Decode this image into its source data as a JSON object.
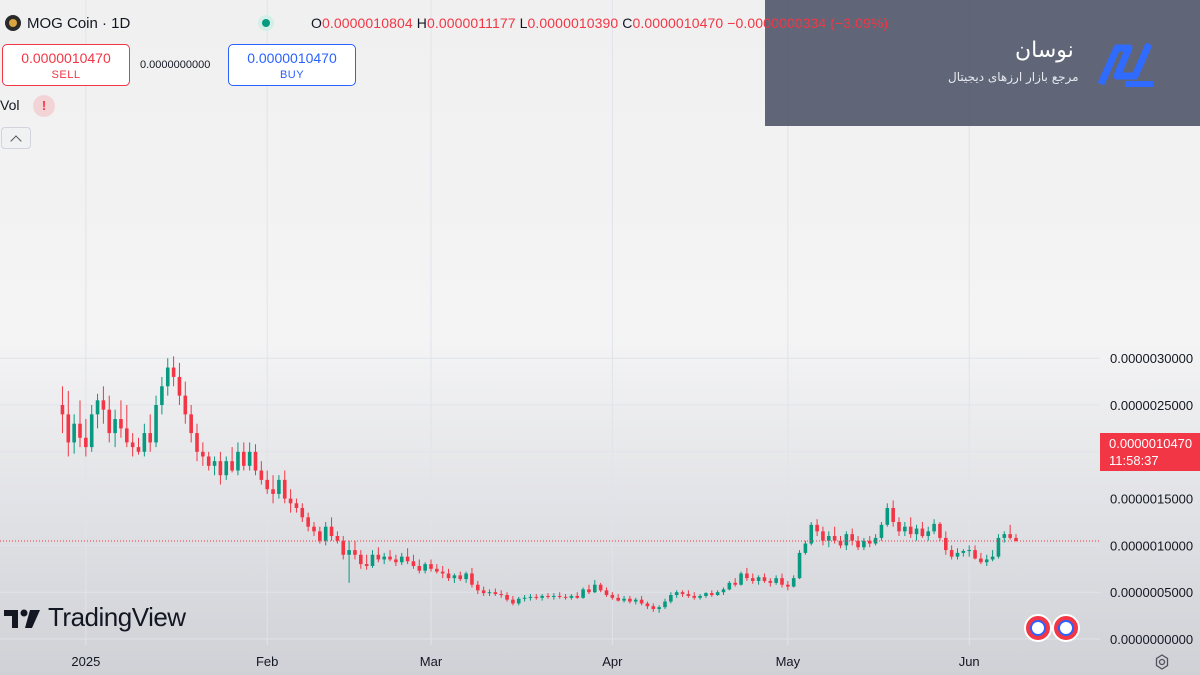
{
  "header": {
    "symbol": "MOG Coin · 1D",
    "ohlc": {
      "o_label": "O",
      "o_value": "0.0000010804",
      "h_label": "H",
      "h_value": "0.0000011177",
      "l_label": "L",
      "l_value": "0.0000010390",
      "c_label": "C",
      "c_value": "0.0000010470",
      "change": "−0.0000000334 (−3.09%)"
    }
  },
  "trade": {
    "sell_price": "0.0000010470",
    "sell_label": "SELL",
    "spread": "0.0000000000",
    "buy_price": "0.0000010470",
    "buy_label": "BUY"
  },
  "volume": {
    "label": "Vol",
    "warning": "!"
  },
  "brand": {
    "name": "نوسان",
    "tagline": "مرجع بازار ارزهای دیجیتال"
  },
  "watermark": {
    "text": "TradingView"
  },
  "current_price": {
    "value": "0.0000010470",
    "countdown": "11:58:37"
  },
  "icons": {
    "coin": "mog-coin-icon",
    "live": "live-dot-icon",
    "warning": "warning-icon",
    "collapse": "chevron-up-icon",
    "brand": "navasan-logo-icon",
    "tv": "tradingview-logo-icon",
    "flag": "us-flag-icon",
    "settings": "settings-gear-icon"
  },
  "colors": {
    "up": "#089981",
    "down": "#f23645",
    "buy": "#2962ff",
    "overlay": "#4b5266"
  },
  "chart_data": {
    "type": "candlestick",
    "interval": "1D",
    "ylim": [
      0,
      3.1e-06
    ],
    "y_ticks": [
      "0.0000000000",
      "0.0000005000",
      "0.0000010000",
      "0.0000015000",
      "0.0000020000",
      "0.0000025000",
      "0.0000030000"
    ],
    "y_tick_values": [
      0,
      5e-07,
      1e-06,
      1.5e-06,
      2e-06,
      2.5e-06,
      3e-06
    ],
    "x_labels": [
      "2025",
      "Feb",
      "Mar",
      "Apr",
      "May",
      "Jun"
    ],
    "x_label_days": [
      1,
      32,
      60,
      91,
      121,
      152
    ],
    "first_day": -3,
    "current_price": 1.047e-06,
    "candles": [
      [
        2.5,
        2.7,
        2.2,
        2.4
      ],
      [
        2.4,
        2.65,
        1.95,
        2.1
      ],
      [
        2.1,
        2.4,
        1.98,
        2.3
      ],
      [
        2.3,
        2.55,
        2.05,
        2.15
      ],
      [
        2.15,
        2.35,
        1.95,
        2.05
      ],
      [
        2.05,
        2.5,
        2.0,
        2.4
      ],
      [
        2.4,
        2.62,
        2.25,
        2.55
      ],
      [
        2.55,
        2.7,
        2.3,
        2.45
      ],
      [
        2.45,
        2.6,
        2.1,
        2.2
      ],
      [
        2.2,
        2.45,
        2.05,
        2.35
      ],
      [
        2.35,
        2.55,
        2.15,
        2.25
      ],
      [
        2.25,
        2.5,
        2.05,
        2.1
      ],
      [
        2.1,
        2.2,
        1.95,
        2.05
      ],
      [
        2.05,
        2.15,
        1.97,
        2.0
      ],
      [
        2.0,
        2.3,
        1.95,
        2.2
      ],
      [
        2.2,
        2.4,
        2.0,
        2.1
      ],
      [
        2.1,
        2.6,
        2.05,
        2.5
      ],
      [
        2.5,
        2.8,
        2.4,
        2.7
      ],
      [
        2.7,
        3.0,
        2.6,
        2.9
      ],
      [
        2.9,
        3.02,
        2.7,
        2.8
      ],
      [
        2.8,
        2.95,
        2.5,
        2.6
      ],
      [
        2.6,
        2.75,
        2.3,
        2.4
      ],
      [
        2.4,
        2.5,
        2.1,
        2.2
      ],
      [
        2.2,
        2.3,
        1.9,
        2.0
      ],
      [
        2.0,
        2.1,
        1.85,
        1.95
      ],
      [
        1.95,
        2.0,
        1.8,
        1.85
      ],
      [
        1.85,
        1.95,
        1.75,
        1.9
      ],
      [
        1.9,
        2.0,
        1.65,
        1.75
      ],
      [
        1.75,
        1.95,
        1.7,
        1.9
      ],
      [
        1.9,
        2.05,
        1.78,
        1.8
      ],
      [
        1.8,
        2.1,
        1.75,
        2.0
      ],
      [
        2.0,
        2.1,
        1.8,
        1.85
      ],
      [
        1.85,
        2.1,
        1.8,
        2.0
      ],
      [
        2.0,
        2.08,
        1.75,
        1.8
      ],
      [
        1.8,
        1.9,
        1.65,
        1.7
      ],
      [
        1.7,
        1.8,
        1.55,
        1.6
      ],
      [
        1.6,
        1.75,
        1.45,
        1.55
      ],
      [
        1.55,
        1.75,
        1.5,
        1.7
      ],
      [
        1.7,
        1.8,
        1.45,
        1.5
      ],
      [
        1.5,
        1.6,
        1.35,
        1.45
      ],
      [
        1.45,
        1.5,
        1.35,
        1.4
      ],
      [
        1.4,
        1.45,
        1.25,
        1.3
      ],
      [
        1.3,
        1.35,
        1.15,
        1.2
      ],
      [
        1.2,
        1.25,
        1.1,
        1.15
      ],
      [
        1.15,
        1.2,
        1.02,
        1.05
      ],
      [
        1.05,
        1.25,
        1.0,
        1.2
      ],
      [
        1.2,
        1.3,
        1.05,
        1.1
      ],
      [
        1.1,
        1.15,
        1.02,
        1.05
      ],
      [
        1.05,
        1.1,
        0.85,
        0.9
      ],
      [
        0.9,
        1.05,
        0.6,
        0.95
      ],
      [
        0.95,
        1.05,
        0.85,
        0.9
      ],
      [
        0.9,
        0.95,
        0.75,
        0.8
      ],
      [
        0.8,
        0.9,
        0.74,
        0.78
      ],
      [
        0.78,
        0.95,
        0.76,
        0.9
      ],
      [
        0.9,
        0.98,
        0.82,
        0.85
      ],
      [
        0.85,
        0.92,
        0.8,
        0.88
      ],
      [
        0.88,
        0.95,
        0.83,
        0.85
      ],
      [
        0.85,
        0.9,
        0.78,
        0.82
      ],
      [
        0.82,
        0.92,
        0.79,
        0.88
      ],
      [
        0.88,
        0.97,
        0.8,
        0.83
      ],
      [
        0.83,
        0.9,
        0.75,
        0.78
      ],
      [
        0.78,
        0.85,
        0.7,
        0.73
      ],
      [
        0.73,
        0.82,
        0.7,
        0.8
      ],
      [
        0.8,
        0.85,
        0.72,
        0.75
      ],
      [
        0.75,
        0.8,
        0.7,
        0.72
      ],
      [
        0.72,
        0.78,
        0.65,
        0.7
      ],
      [
        0.7,
        0.75,
        0.62,
        0.65
      ],
      [
        0.65,
        0.7,
        0.6,
        0.68
      ],
      [
        0.68,
        0.72,
        0.62,
        0.64
      ],
      [
        0.64,
        0.72,
        0.6,
        0.7
      ],
      [
        0.7,
        0.76,
        0.55,
        0.58
      ],
      [
        0.58,
        0.62,
        0.48,
        0.52
      ],
      [
        0.52,
        0.56,
        0.46,
        0.49
      ],
      [
        0.49,
        0.53,
        0.46,
        0.5
      ],
      [
        0.5,
        0.54,
        0.46,
        0.48
      ],
      [
        0.48,
        0.52,
        0.44,
        0.47
      ],
      [
        0.47,
        0.5,
        0.4,
        0.42
      ],
      [
        0.42,
        0.46,
        0.36,
        0.38
      ],
      [
        0.38,
        0.45,
        0.36,
        0.43
      ],
      [
        0.43,
        0.47,
        0.4,
        0.44
      ],
      [
        0.44,
        0.48,
        0.41,
        0.45
      ],
      [
        0.45,
        0.48,
        0.42,
        0.44
      ],
      [
        0.44,
        0.48,
        0.41,
        0.46
      ],
      [
        0.46,
        0.49,
        0.43,
        0.45
      ],
      [
        0.45,
        0.49,
        0.42,
        0.46
      ],
      [
        0.46,
        0.5,
        0.43,
        0.45
      ],
      [
        0.45,
        0.48,
        0.42,
        0.44
      ],
      [
        0.44,
        0.48,
        0.42,
        0.46
      ],
      [
        0.46,
        0.5,
        0.43,
        0.44
      ],
      [
        0.44,
        0.55,
        0.43,
        0.53
      ],
      [
        0.53,
        0.58,
        0.48,
        0.5
      ],
      [
        0.5,
        0.63,
        0.49,
        0.58
      ],
      [
        0.58,
        0.6,
        0.5,
        0.52
      ],
      [
        0.52,
        0.55,
        0.45,
        0.47
      ],
      [
        0.47,
        0.5,
        0.42,
        0.44
      ],
      [
        0.44,
        0.48,
        0.4,
        0.41
      ],
      [
        0.41,
        0.46,
        0.39,
        0.43
      ],
      [
        0.43,
        0.46,
        0.38,
        0.4
      ],
      [
        0.4,
        0.44,
        0.37,
        0.42
      ],
      [
        0.42,
        0.46,
        0.36,
        0.38
      ],
      [
        0.38,
        0.4,
        0.32,
        0.35
      ],
      [
        0.35,
        0.38,
        0.29,
        0.32
      ],
      [
        0.32,
        0.36,
        0.28,
        0.34
      ],
      [
        0.34,
        0.43,
        0.32,
        0.4
      ],
      [
        0.4,
        0.5,
        0.38,
        0.47
      ],
      [
        0.47,
        0.52,
        0.44,
        0.5
      ],
      [
        0.5,
        0.52,
        0.45,
        0.48
      ],
      [
        0.48,
        0.52,
        0.44,
        0.46
      ],
      [
        0.46,
        0.5,
        0.42,
        0.44
      ],
      [
        0.44,
        0.48,
        0.42,
        0.46
      ],
      [
        0.46,
        0.5,
        0.44,
        0.49
      ],
      [
        0.49,
        0.52,
        0.45,
        0.47
      ],
      [
        0.47,
        0.52,
        0.46,
        0.5
      ],
      [
        0.5,
        0.55,
        0.47,
        0.53
      ],
      [
        0.53,
        0.62,
        0.52,
        0.6
      ],
      [
        0.6,
        0.65,
        0.56,
        0.58
      ],
      [
        0.58,
        0.72,
        0.57,
        0.7
      ],
      [
        0.7,
        0.76,
        0.62,
        0.65
      ],
      [
        0.65,
        0.7,
        0.59,
        0.62
      ],
      [
        0.62,
        0.68,
        0.58,
        0.66
      ],
      [
        0.66,
        0.7,
        0.6,
        0.62
      ],
      [
        0.62,
        0.65,
        0.56,
        0.6
      ],
      [
        0.6,
        0.68,
        0.58,
        0.65
      ],
      [
        0.65,
        0.7,
        0.55,
        0.58
      ],
      [
        0.58,
        0.62,
        0.52,
        0.56
      ],
      [
        0.56,
        0.68,
        0.55,
        0.65
      ],
      [
        0.65,
        0.95,
        0.64,
        0.92
      ],
      [
        0.92,
        1.05,
        0.9,
        1.02
      ],
      [
        1.02,
        1.25,
        1.0,
        1.22
      ],
      [
        1.22,
        1.28,
        1.1,
        1.15
      ],
      [
        1.15,
        1.2,
        1.0,
        1.05
      ],
      [
        1.05,
        1.15,
        0.98,
        1.1
      ],
      [
        1.1,
        1.2,
        1.02,
        1.05
      ],
      [
        1.05,
        1.1,
        0.97,
        1.0
      ],
      [
        1.0,
        1.15,
        0.95,
        1.12
      ],
      [
        1.12,
        1.18,
        1.0,
        1.05
      ],
      [
        1.05,
        1.1,
        0.95,
        0.98
      ],
      [
        0.98,
        1.08,
        0.95,
        1.05
      ],
      [
        1.05,
        1.1,
        0.98,
        1.02
      ],
      [
        1.02,
        1.12,
        1.0,
        1.08
      ],
      [
        1.08,
        1.25,
        1.05,
        1.22
      ],
      [
        1.22,
        1.45,
        1.2,
        1.4
      ],
      [
        1.4,
        1.48,
        1.2,
        1.25
      ],
      [
        1.25,
        1.3,
        1.1,
        1.15
      ],
      [
        1.15,
        1.25,
        1.1,
        1.2
      ],
      [
        1.2,
        1.3,
        1.08,
        1.12
      ],
      [
        1.12,
        1.22,
        1.05,
        1.18
      ],
      [
        1.18,
        1.25,
        1.08,
        1.1
      ],
      [
        1.1,
        1.2,
        1.05,
        1.15
      ],
      [
        1.15,
        1.28,
        1.12,
        1.23
      ],
      [
        1.23,
        1.25,
        1.05,
        1.08
      ],
      [
        1.08,
        1.15,
        0.9,
        0.95
      ],
      [
        0.95,
        1.0,
        0.85,
        0.88
      ],
      [
        0.88,
        0.97,
        0.85,
        0.92
      ],
      [
        0.92,
        0.96,
        0.88,
        0.94
      ],
      [
        0.94,
        1.0,
        0.88,
        0.95
      ],
      [
        0.95,
        1.0,
        0.85,
        0.86
      ],
      [
        0.86,
        0.92,
        0.8,
        0.82
      ],
      [
        0.82,
        0.9,
        0.78,
        0.85
      ],
      [
        0.85,
        0.95,
        0.83,
        0.88
      ],
      [
        0.88,
        1.12,
        0.86,
        1.08
      ],
      [
        1.08,
        1.15,
        1.03,
        1.12
      ],
      [
        1.12,
        1.22,
        1.06,
        1.08
      ],
      [
        1.08,
        1.12,
        1.04,
        1.047
      ]
    ]
  }
}
